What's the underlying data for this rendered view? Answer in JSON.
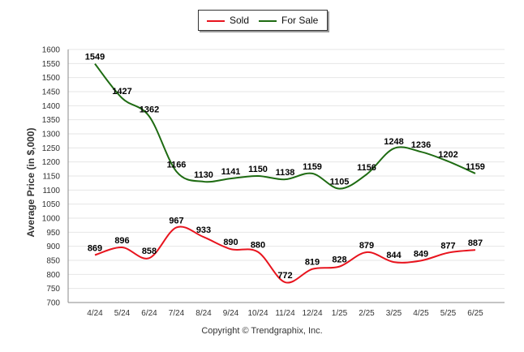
{
  "legend": {
    "sold_label": "Sold",
    "forsale_label": "For Sale"
  },
  "copyright": "Copyright © Trendgraphix, Inc.",
  "chart_data": {
    "type": "line",
    "xlabel": "",
    "ylabel": "Average Price (in $,000)",
    "categories": [
      "4/24",
      "5/24",
      "6/24",
      "7/24",
      "8/24",
      "9/24",
      "10/24",
      "11/24",
      "12/24",
      "1/25",
      "2/25",
      "3/25",
      "4/25",
      "5/25",
      "6/25"
    ],
    "ylim": [
      700,
      1600
    ],
    "yticks": [
      700,
      750,
      800,
      850,
      900,
      950,
      1000,
      1050,
      1100,
      1150,
      1200,
      1250,
      1300,
      1350,
      1400,
      1450,
      1500,
      1550,
      1600
    ],
    "grid": true,
    "legend_position": "top-center",
    "series": [
      {
        "name": "Sold",
        "color": "#e8141e",
        "values": [
          869,
          896,
          858,
          967,
          933,
          890,
          880,
          772,
          819,
          828,
          879,
          844,
          849,
          877,
          887
        ]
      },
      {
        "name": "For Sale",
        "color": "#1e6b12",
        "values": [
          1549,
          1427,
          1362,
          1166,
          1130,
          1141,
          1150,
          1138,
          1159,
          1105,
          1156,
          1248,
          1236,
          1202,
          1159
        ]
      }
    ]
  }
}
